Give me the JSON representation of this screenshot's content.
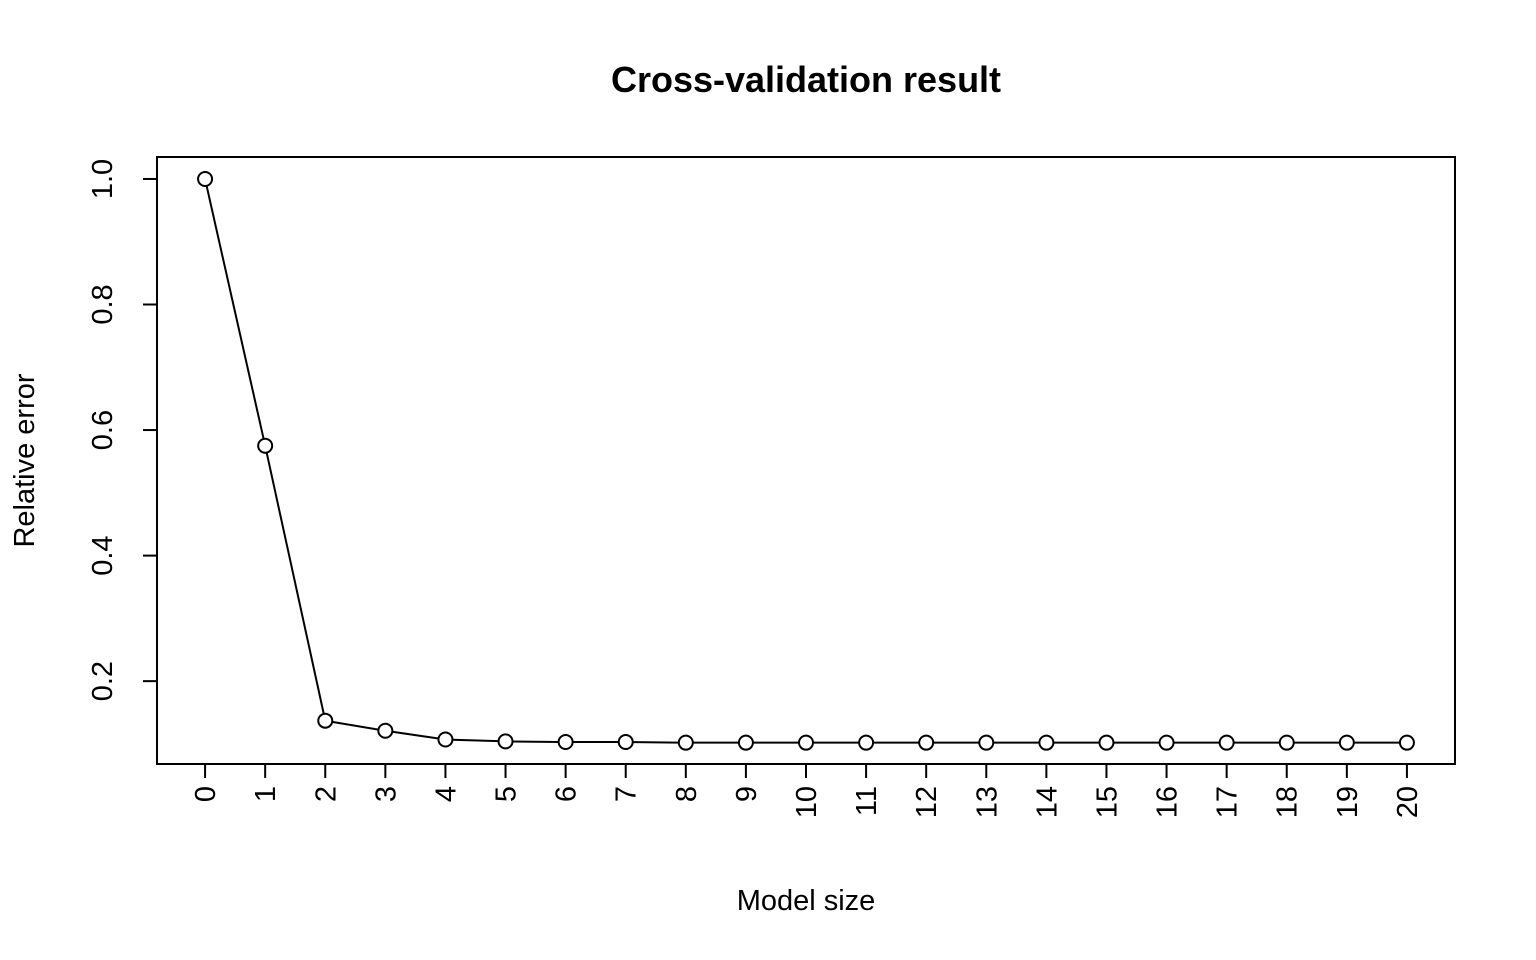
{
  "chart_data": {
    "type": "line",
    "title": "Cross-validation result",
    "xlabel": "Model size",
    "ylabel": "Relative error",
    "x": [
      0,
      1,
      2,
      3,
      4,
      5,
      6,
      7,
      8,
      9,
      10,
      11,
      12,
      13,
      14,
      15,
      16,
      17,
      18,
      19,
      20
    ],
    "x_tick_labels": [
      "0",
      "1",
      "2",
      "3",
      "4",
      "5",
      "6",
      "7",
      "8",
      "9",
      "10",
      "11",
      "12",
      "13",
      "14",
      "15",
      "16",
      "17",
      "18",
      "19",
      "20"
    ],
    "y_ticks": [
      0.2,
      0.4,
      0.6,
      0.8,
      1.0
    ],
    "y_tick_labels": [
      "0.2",
      "0.4",
      "0.6",
      "0.8",
      "1.0"
    ],
    "series": [
      {
        "values": [
          1.0,
          0.575,
          0.137,
          0.121,
          0.107,
          0.104,
          0.103,
          0.103,
          0.102,
          0.102,
          0.102,
          0.102,
          0.102,
          0.102,
          0.102,
          0.102,
          0.102,
          0.102,
          0.102,
          0.102,
          0.102
        ],
        "marker": "open-circle",
        "line": true
      }
    ],
    "xlim": [
      -0.8,
      20.8
    ],
    "ylim": [
      0.068,
      1.035
    ],
    "grid": false,
    "legend": "none",
    "color": "#000000"
  }
}
